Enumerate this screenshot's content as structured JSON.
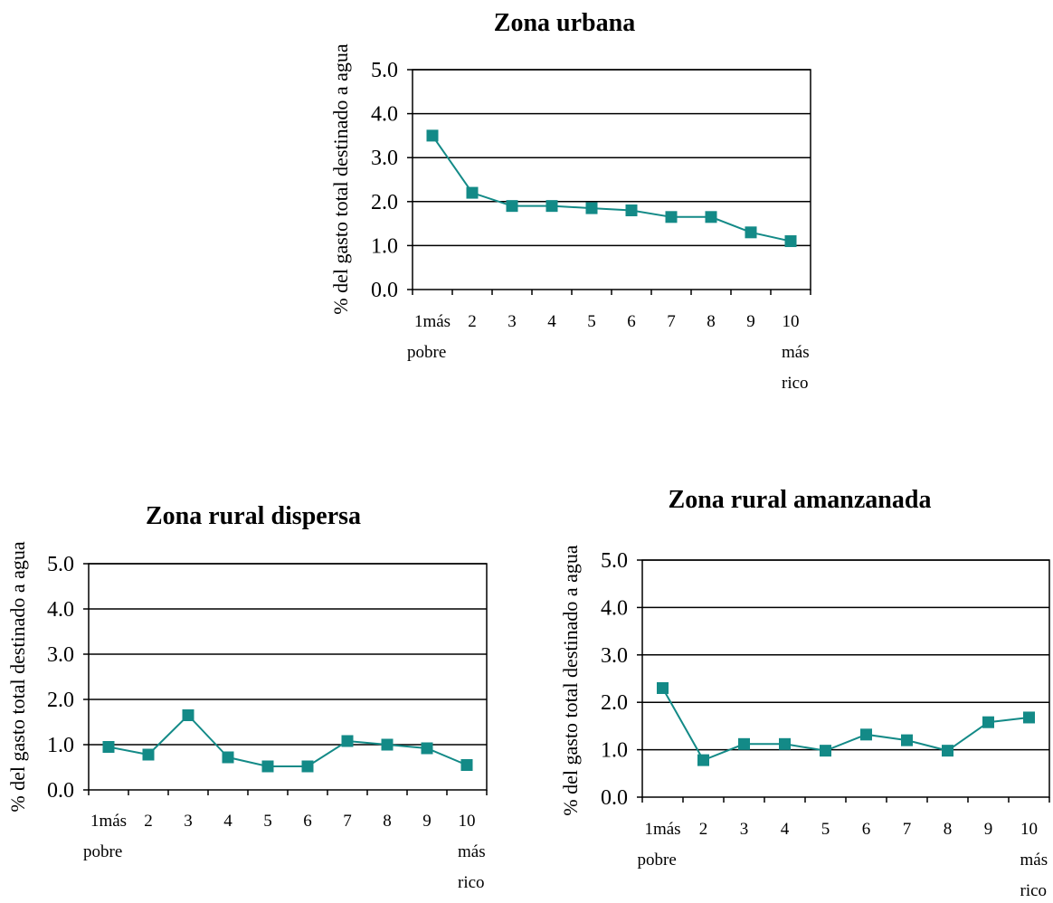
{
  "colors": {
    "series": "#138a87",
    "grid": "#000000"
  },
  "chart_data": [
    {
      "type": "line",
      "title": "Zona urbana",
      "ylabel": "% del gasto total destinado a agua",
      "ylim": [
        0,
        5
      ],
      "yticks": [
        "0.0",
        "1.0",
        "2.0",
        "3.0",
        "4.0",
        "5.0"
      ],
      "categories": [
        "1más pobre",
        "2",
        "3",
        "4",
        "5",
        "6",
        "7",
        "8",
        "9",
        "10 más rico"
      ],
      "category_lines": [
        [
          "1más",
          "pobre"
        ],
        [
          "2"
        ],
        [
          "3"
        ],
        [
          "4"
        ],
        [
          "5"
        ],
        [
          "6"
        ],
        [
          "7"
        ],
        [
          "8"
        ],
        [
          "9"
        ],
        [
          "10",
          "más",
          "rico"
        ]
      ],
      "values": [
        3.5,
        2.2,
        1.9,
        1.9,
        1.85,
        1.8,
        1.65,
        1.65,
        1.3,
        1.1
      ],
      "grid": true,
      "marker": "square"
    },
    {
      "type": "line",
      "title": "Zona rural dispersa",
      "ylabel": "% del gasto total destinado a agua",
      "ylim": [
        0,
        5
      ],
      "yticks": [
        "0.0",
        "1.0",
        "2.0",
        "3.0",
        "4.0",
        "5.0"
      ],
      "categories": [
        "1más pobre",
        "2",
        "3",
        "4",
        "5",
        "6",
        "7",
        "8",
        "9",
        "10 más rico"
      ],
      "category_lines": [
        [
          "1más",
          "pobre"
        ],
        [
          "2"
        ],
        [
          "3"
        ],
        [
          "4"
        ],
        [
          "5"
        ],
        [
          "6"
        ],
        [
          "7"
        ],
        [
          "8"
        ],
        [
          "9"
        ],
        [
          "10",
          "más",
          "rico"
        ]
      ],
      "values": [
        0.95,
        0.78,
        1.65,
        0.72,
        0.52,
        0.52,
        1.08,
        1.0,
        0.92,
        0.55
      ],
      "grid": true,
      "marker": "square"
    },
    {
      "type": "line",
      "title": "Zona rural amanzanada",
      "ylabel": "% del gasto total destinado a agua",
      "ylim": [
        0,
        5
      ],
      "yticks": [
        "0.0",
        "1.0",
        "2.0",
        "3.0",
        "4.0",
        "5.0"
      ],
      "categories": [
        "1más pobre",
        "2",
        "3",
        "4",
        "5",
        "6",
        "7",
        "8",
        "9",
        "10 más rico"
      ],
      "category_lines": [
        [
          "1más",
          "pobre"
        ],
        [
          "2"
        ],
        [
          "3"
        ],
        [
          "4"
        ],
        [
          "5"
        ],
        [
          "6"
        ],
        [
          "7"
        ],
        [
          "8"
        ],
        [
          "9"
        ],
        [
          "10",
          "más",
          "rico"
        ]
      ],
      "values": [
        2.3,
        0.78,
        1.12,
        1.12,
        0.98,
        1.32,
        1.2,
        0.98,
        1.58,
        1.68
      ],
      "grid": true,
      "marker": "square"
    }
  ]
}
